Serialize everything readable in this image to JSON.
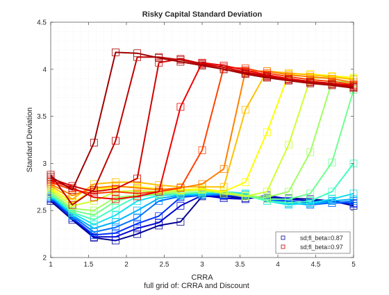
{
  "chart_data": {
    "type": "line",
    "title": "Risky Capital Standard Deviation",
    "xlabel": "CRRA",
    "ylabel": "Standard Deviation",
    "caption": "full grid of: CRRA and Discount",
    "xlim": [
      1,
      5
    ],
    "ylim": [
      2,
      4.5
    ],
    "xticks": [
      "1",
      "1.5",
      "2",
      "2.5",
      "3",
      "3.5",
      "4",
      "4.5",
      "5"
    ],
    "yticks": [
      "2",
      "2.5",
      "3",
      "3.5",
      "4",
      "4.5"
    ],
    "grid": "dotted",
    "legend_position": "bottom-right",
    "legend": [
      {
        "label": "sd;fl_beta=0.87",
        "color": "#00008f"
      },
      {
        "label": "sd;fl_beta=0.97",
        "color": "#c00000"
      }
    ],
    "x": [
      1,
      1.2857,
      1.5714,
      1.8571,
      2.1429,
      2.4286,
      2.7143,
      3,
      3.2857,
      3.5714,
      3.8571,
      4.1429,
      4.4286,
      4.7143,
      5
    ],
    "series": [
      {
        "color": "#00008f",
        "values": [
          2.6,
          2.4,
          2.21,
          2.18,
          2.25,
          2.34,
          2.38,
          2.65,
          2.65,
          2.63,
          2.64,
          2.63,
          2.62,
          2.6,
          2.55
        ]
      },
      {
        "color": "#0000d0",
        "values": [
          2.62,
          2.42,
          2.22,
          2.22,
          2.31,
          2.37,
          2.55,
          2.66,
          2.63,
          2.62,
          2.66,
          2.62,
          2.6,
          2.6,
          2.57
        ]
      },
      {
        "color": "#0030ff",
        "values": [
          2.63,
          2.42,
          2.24,
          2.26,
          2.36,
          2.44,
          2.64,
          2.66,
          2.66,
          2.65,
          2.63,
          2.6,
          2.58,
          2.58,
          2.58
        ]
      },
      {
        "color": "#0070ff",
        "values": [
          2.64,
          2.44,
          2.27,
          2.32,
          2.42,
          2.6,
          2.65,
          2.66,
          2.67,
          2.66,
          2.62,
          2.58,
          2.56,
          2.58,
          2.6
        ]
      },
      {
        "color": "#00b0ff",
        "values": [
          2.65,
          2.45,
          2.31,
          2.38,
          2.5,
          2.63,
          2.66,
          2.67,
          2.68,
          2.67,
          2.6,
          2.57,
          2.57,
          2.6,
          2.62
        ]
      },
      {
        "color": "#10e0ef",
        "values": [
          2.66,
          2.47,
          2.35,
          2.45,
          2.6,
          2.66,
          2.67,
          2.68,
          2.7,
          2.68,
          2.6,
          2.56,
          2.58,
          2.62,
          2.68
        ]
      },
      {
        "color": "#40ffbf",
        "values": [
          2.67,
          2.48,
          2.4,
          2.53,
          2.65,
          2.67,
          2.68,
          2.69,
          2.7,
          2.66,
          2.6,
          2.58,
          2.6,
          2.7,
          3.0
        ]
      },
      {
        "color": "#70ff8f",
        "values": [
          2.68,
          2.5,
          2.45,
          2.6,
          2.66,
          2.67,
          2.68,
          2.7,
          2.7,
          2.65,
          2.62,
          2.62,
          2.68,
          3.01,
          3.78
        ]
      },
      {
        "color": "#a0ff60",
        "values": [
          2.7,
          2.52,
          2.5,
          2.64,
          2.66,
          2.68,
          2.7,
          2.72,
          2.7,
          2.66,
          2.64,
          2.7,
          3.12,
          3.87,
          3.86
        ]
      },
      {
        "color": "#d0ff30",
        "values": [
          2.72,
          2.55,
          2.6,
          2.7,
          2.71,
          2.7,
          2.71,
          2.72,
          2.68,
          2.65,
          2.7,
          3.2,
          3.9,
          3.92,
          3.9
        ]
      },
      {
        "color": "#ffff00",
        "values": [
          2.74,
          2.58,
          2.72,
          2.75,
          2.75,
          2.73,
          2.72,
          2.73,
          2.7,
          2.8,
          3.33,
          3.95,
          3.95,
          3.93,
          3.91
        ]
      },
      {
        "color": "#ffc000",
        "values": [
          2.76,
          2.62,
          2.78,
          2.8,
          2.8,
          2.77,
          2.75,
          2.75,
          2.75,
          3.57,
          3.98,
          3.96,
          3.94,
          3.92,
          3.89
        ]
      },
      {
        "color": "#ff8000",
        "values": [
          2.78,
          2.66,
          2.74,
          2.76,
          2.74,
          2.72,
          2.74,
          2.78,
          2.94,
          3.98,
          3.98,
          3.94,
          3.92,
          3.9,
          3.86
        ]
      },
      {
        "color": "#ff4000",
        "values": [
          2.8,
          2.72,
          2.68,
          2.7,
          2.68,
          2.7,
          2.74,
          3.14,
          4.02,
          4.01,
          3.96,
          3.92,
          3.89,
          3.87,
          3.84
        ]
      },
      {
        "color": "#f00000",
        "values": [
          2.82,
          2.74,
          2.64,
          2.62,
          2.65,
          2.7,
          3.6,
          4.07,
          4.04,
          3.99,
          3.94,
          3.9,
          3.87,
          3.85,
          3.83
        ]
      },
      {
        "color": "#d00000",
        "values": [
          2.84,
          2.76,
          2.7,
          2.73,
          2.84,
          4.07,
          4.11,
          4.06,
          4.02,
          3.97,
          3.93,
          3.89,
          3.87,
          3.85,
          3.82
        ]
      },
      {
        "color": "#c00000",
        "values": [
          2.88,
          2.56,
          2.72,
          3.24,
          4.13,
          4.13,
          4.1,
          4.05,
          4.0,
          3.96,
          3.92,
          3.88,
          3.86,
          3.84,
          3.81
        ]
      },
      {
        "color": "#a00000",
        "values": [
          2.86,
          2.72,
          3.22,
          4.18,
          4.17,
          4.12,
          4.08,
          4.04,
          4.0,
          3.95,
          3.91,
          3.88,
          3.85,
          3.83,
          3.8
        ]
      }
    ]
  }
}
